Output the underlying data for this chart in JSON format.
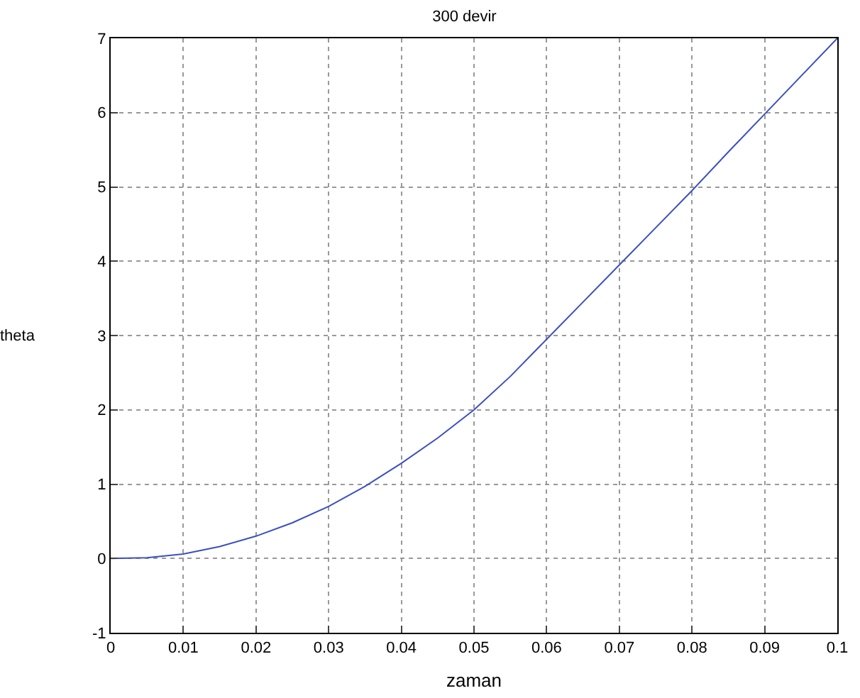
{
  "chart_data": {
    "type": "line",
    "title": "300 devir",
    "xlabel": "zaman",
    "ylabel": "theta",
    "x": [
      0,
      0.005,
      0.01,
      0.015,
      0.02,
      0.025,
      0.03,
      0.035,
      0.04,
      0.045,
      0.05,
      0.055,
      0.06,
      0.065,
      0.07,
      0.075,
      0.08,
      0.085,
      0.09,
      0.095,
      0.1
    ],
    "series": [
      {
        "color": "#3b4fc0",
        "values": [
          0,
          0.01,
          0.06,
          0.16,
          0.3,
          0.48,
          0.7,
          0.97,
          1.28,
          1.62,
          2.0,
          2.45,
          2.95,
          3.45,
          3.95,
          4.45,
          4.95,
          5.47,
          5.98,
          6.49,
          7.0
        ]
      }
    ],
    "xlim": [
      0,
      0.1
    ],
    "xticks": [
      0,
      0.01,
      0.02,
      0.03,
      0.04,
      0.05,
      0.06,
      0.07,
      0.08,
      0.09,
      0.1
    ],
    "ylim": [
      -1,
      7
    ],
    "yticks": [
      -1,
      0,
      1,
      2,
      3,
      4,
      5,
      6,
      7
    ],
    "grid": true,
    "line_style": "solid",
    "marker": "none"
  }
}
